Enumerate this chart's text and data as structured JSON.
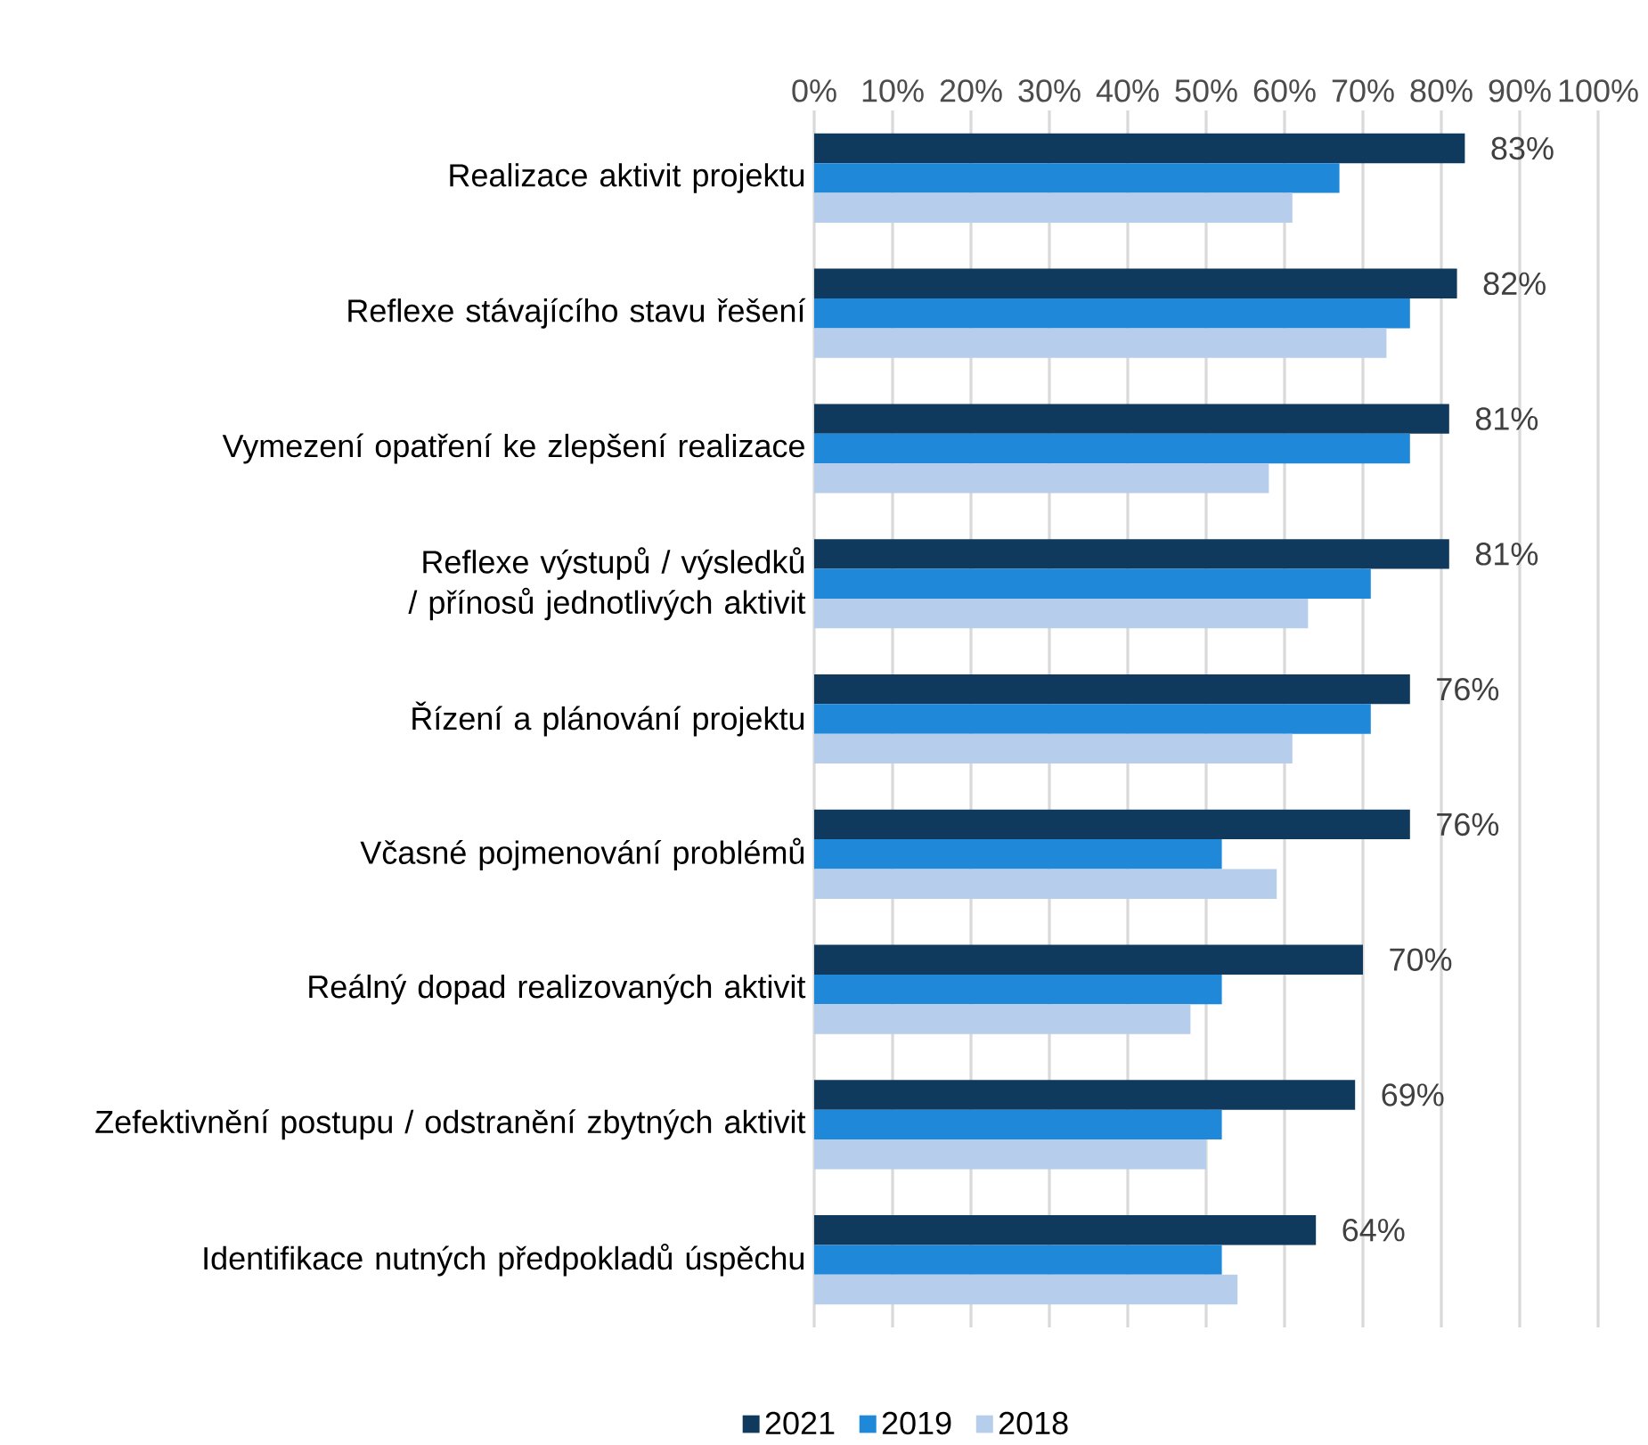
{
  "chart_data": {
    "type": "bar",
    "orientation": "horizontal",
    "categories": [
      "Realizace aktivit projektu",
      "Reflexe stávajícího stavu řešení",
      "Vymezení opatření ke zlepšení realizace",
      "Reflexe výstupů / výsledků / přínosů jednotlivých aktivit",
      "Řízení a plánování projektu",
      "Včasné pojmenování problémů",
      "Reálný dopad realizovaných aktivit",
      "Zefektivnění postupu / odstranění zbytných aktivit",
      "Identifikace nutných předpokladů úspěchu"
    ],
    "series": [
      {
        "name": "2021",
        "color": "#0f3a5e",
        "values": [
          83,
          82,
          81,
          81,
          76,
          76,
          70,
          69,
          64
        ],
        "value_labels": [
          "83%",
          "82%",
          "81%",
          "81%",
          "76%",
          "76%",
          "70%",
          "69%",
          "64%"
        ]
      },
      {
        "name": "2019",
        "color": "#1f88d8",
        "values": [
          67,
          76,
          76,
          71,
          71,
          52,
          52,
          52,
          52
        ]
      },
      {
        "name": "2018",
        "color": "#b6cdeb",
        "values": [
          61,
          73,
          58,
          63,
          61,
          59,
          48,
          50,
          54
        ]
      }
    ],
    "xlim": [
      0,
      100
    ],
    "xticks": [
      {
        "value": 0,
        "label": "0%"
      },
      {
        "value": 10,
        "label": "10%"
      },
      {
        "value": 20,
        "label": "20%"
      },
      {
        "value": 30,
        "label": "30%"
      },
      {
        "value": 40,
        "label": "40%"
      },
      {
        "value": 50,
        "label": "50%"
      },
      {
        "value": 60,
        "label": "60%"
      },
      {
        "value": 70,
        "label": "70%"
      },
      {
        "value": 80,
        "label": "80%"
      },
      {
        "value": 90,
        "label": "90%"
      },
      {
        "value": 100,
        "label": "100%"
      }
    ],
    "grid": "x",
    "legend": "bottom"
  }
}
